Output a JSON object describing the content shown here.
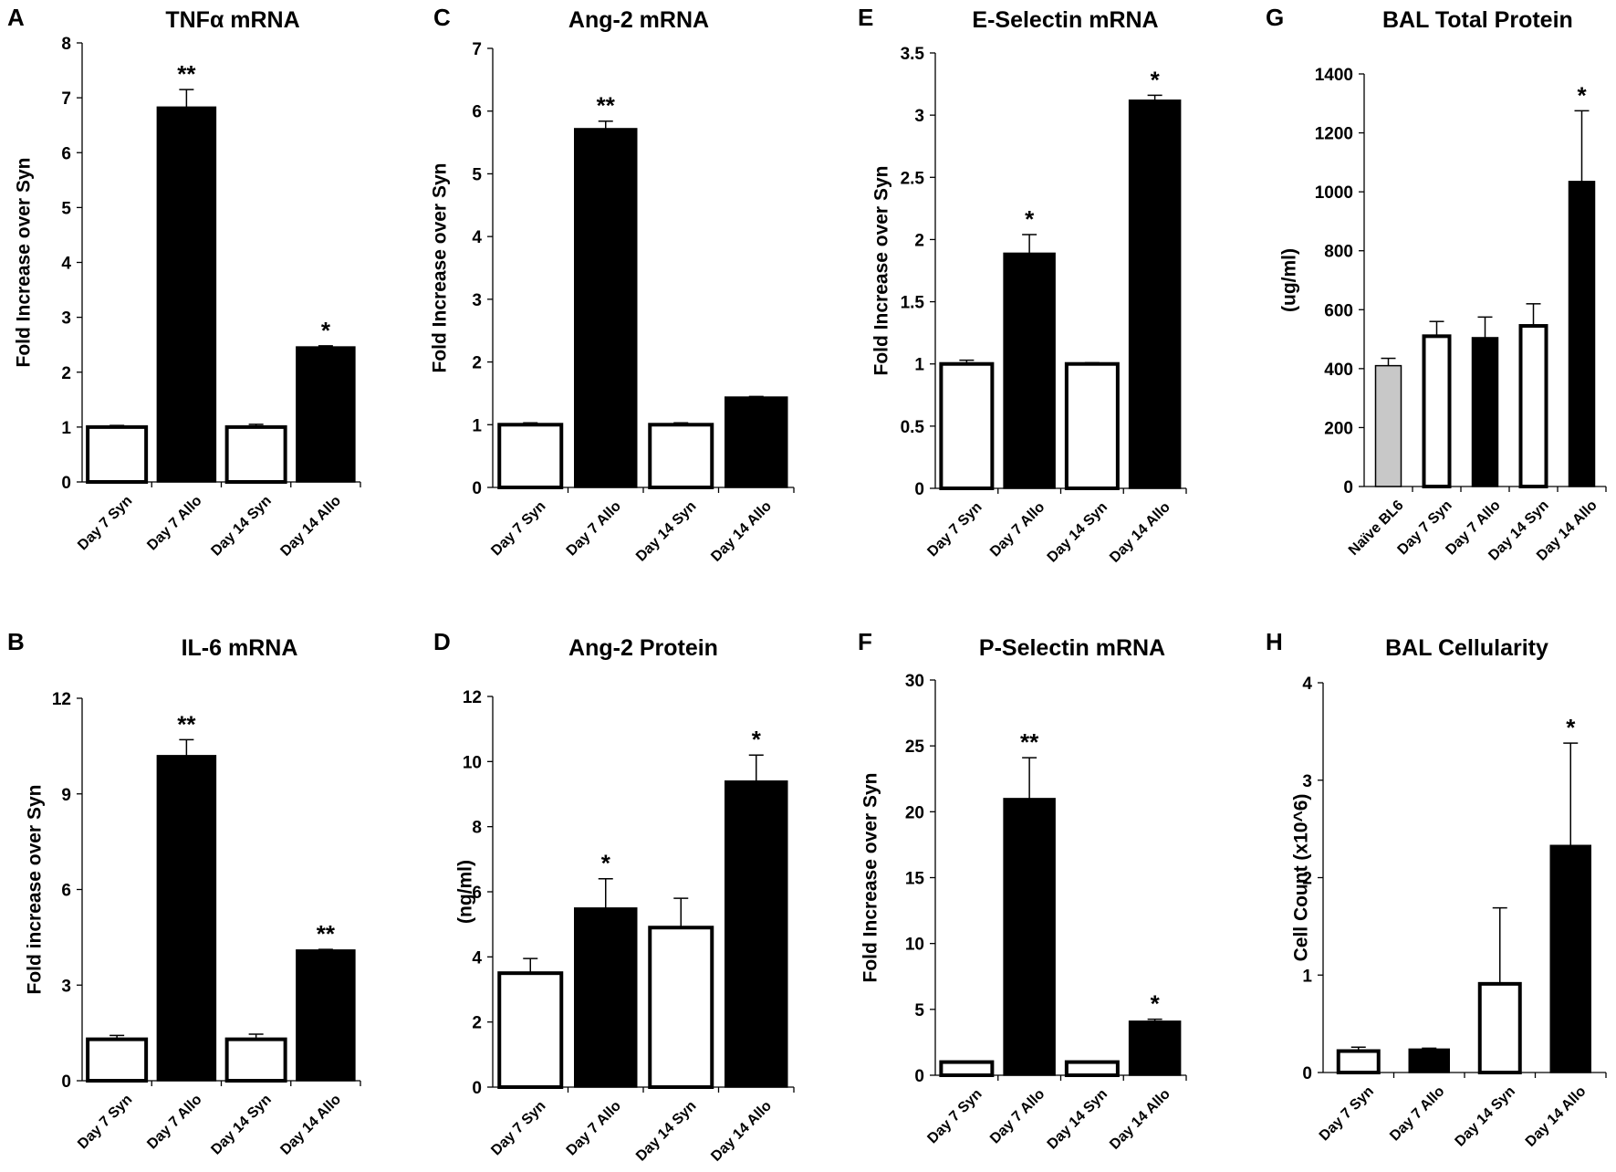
{
  "colors": {
    "allo": "#000000",
    "syn": "#ffffff",
    "naive": "#c8c8c8",
    "stroke": "#000000"
  },
  "chart_data": [
    {
      "id": "A",
      "letter": "A",
      "type": "bar",
      "title": "TNFα mRNA",
      "ylabel": "Fold Increase over Syn",
      "ylim": [
        0,
        8
      ],
      "yticks": [
        "0",
        "1",
        "2",
        "3",
        "4",
        "5",
        "6",
        "7",
        "8"
      ],
      "categories": [
        "Day 7 Syn",
        "Day 7 Allo",
        "Day 14 Syn",
        "Day 14 Allo"
      ],
      "values": [
        1.0,
        6.83,
        1.0,
        2.46
      ],
      "errors": [
        0.03,
        0.32,
        0.05,
        0.02
      ],
      "fills": [
        "syn",
        "allo",
        "syn",
        "allo"
      ],
      "significance": [
        "",
        "**",
        "",
        "*"
      ]
    },
    {
      "id": "B",
      "letter": "B",
      "type": "bar",
      "title": "IL-6 mRNA",
      "ylabel": "Fold increase over Syn",
      "ylim": [
        0,
        12
      ],
      "yticks": [
        "0",
        "3",
        "6",
        "9",
        "12"
      ],
      "categories": [
        "Day 7 Syn",
        "Day 7 Allo",
        "Day 14 Syn",
        "Day 14 Allo"
      ],
      "values": [
        1.3,
        10.2,
        1.3,
        4.1
      ],
      "errors": [
        0.12,
        0.5,
        0.16,
        0.02
      ],
      "fills": [
        "syn",
        "allo",
        "syn",
        "allo"
      ],
      "significance": [
        "",
        "**",
        "",
        "**"
      ]
    },
    {
      "id": "C",
      "letter": "C",
      "type": "bar",
      "title": "Ang-2 mRNA",
      "ylabel": "Fold Increase over Syn",
      "ylim": [
        0,
        7
      ],
      "yticks": [
        "0",
        "1",
        "2",
        "3",
        "4",
        "5",
        "6",
        "7"
      ],
      "categories": [
        "Day 7 Syn",
        "Day 7 Allo",
        "Day 14 Syn",
        "Day 14 Allo"
      ],
      "values": [
        1.0,
        5.72,
        1.0,
        1.44
      ],
      "errors": [
        0.03,
        0.12,
        0.03,
        0.01
      ],
      "fills": [
        "syn",
        "allo",
        "syn",
        "allo"
      ],
      "significance": [
        "",
        "**",
        "",
        ""
      ]
    },
    {
      "id": "D",
      "letter": "D",
      "type": "bar",
      "title": "Ang-2 Protein",
      "ylabel": "(ng/ml)",
      "ylim": [
        0,
        12
      ],
      "yticks": [
        "0",
        "2",
        "4",
        "6",
        "8",
        "10",
        "12"
      ],
      "categories": [
        "Day 7 Syn",
        "Day 7 Allo",
        "Day 14 Syn",
        "Day 14 Allo"
      ],
      "values": [
        3.5,
        5.5,
        4.9,
        9.4
      ],
      "errors": [
        0.45,
        0.9,
        0.9,
        0.8
      ],
      "fills": [
        "syn",
        "allo",
        "syn",
        "allo"
      ],
      "significance": [
        "",
        "*",
        "",
        "*"
      ]
    },
    {
      "id": "E",
      "letter": "E",
      "type": "bar",
      "title": "E-Selectin mRNA",
      "ylabel": "Fold Increase over Syn",
      "ylim": [
        0,
        3.5
      ],
      "yticks": [
        "0",
        "0.5",
        "1",
        "1.5",
        "2",
        "2.5",
        "3",
        "3.5"
      ],
      "categories": [
        "Day 7 Syn",
        "Day 7 Allo",
        "Day 14 Syn",
        "Day 14 Allo"
      ],
      "values": [
        1.0,
        1.89,
        1.0,
        3.12
      ],
      "errors": [
        0.03,
        0.15,
        0.01,
        0.04
      ],
      "fills": [
        "syn",
        "allo",
        "syn",
        "allo"
      ],
      "significance": [
        "",
        "*",
        "",
        "*"
      ]
    },
    {
      "id": "F",
      "letter": "F",
      "type": "bar",
      "title": "P-Selectin mRNA",
      "ylabel": "Fold Increase over Syn",
      "ylim": [
        0,
        30
      ],
      "yticks": [
        "0",
        "5",
        "10",
        "15",
        "20",
        "25",
        "30"
      ],
      "categories": [
        "Day 7 Syn",
        "Day 7 Allo",
        "Day 14 Syn",
        "Day 14 Allo"
      ],
      "values": [
        1.0,
        21.0,
        1.0,
        4.1
      ],
      "errors": [
        0.05,
        3.1,
        0.05,
        0.15
      ],
      "fills": [
        "syn",
        "allo",
        "syn",
        "allo"
      ],
      "significance": [
        "",
        "**",
        "",
        "*"
      ]
    },
    {
      "id": "G",
      "letter": "G",
      "type": "bar",
      "title": "BAL Total Protein",
      "ylabel": "(ug/ml)",
      "ylim": [
        0,
        1400
      ],
      "yticks": [
        "0",
        "200",
        "400",
        "600",
        "800",
        "1000",
        "1200",
        "1400"
      ],
      "categories": [
        "Naïve BL6",
        "Day 7 Syn",
        "Day 7 Allo",
        "Day 14 Syn",
        "Day 14 Allo"
      ],
      "values": [
        410,
        510,
        505,
        545,
        1035
      ],
      "errors": [
        25,
        50,
        70,
        75,
        240
      ],
      "fills": [
        "naive",
        "syn",
        "allo",
        "syn",
        "allo"
      ],
      "significance": [
        "",
        "",
        "",
        "",
        "*"
      ]
    },
    {
      "id": "H",
      "letter": "H",
      "type": "bar",
      "title": "BAL Cellularity",
      "ylabel": "Cell Count (x10^6)",
      "ylim": [
        0,
        4
      ],
      "yticks": [
        "0",
        "1",
        "2",
        "3",
        "4"
      ],
      "categories": [
        "Day 7 Syn",
        "Day 7 Allo",
        "Day 14 Syn",
        "Day 14 Allo"
      ],
      "values": [
        0.22,
        0.24,
        0.91,
        2.33
      ],
      "errors": [
        0.04,
        0.01,
        0.78,
        1.05
      ],
      "fills": [
        "syn",
        "allo",
        "syn",
        "allo"
      ],
      "significance": [
        "",
        "",
        "",
        "*"
      ]
    }
  ]
}
